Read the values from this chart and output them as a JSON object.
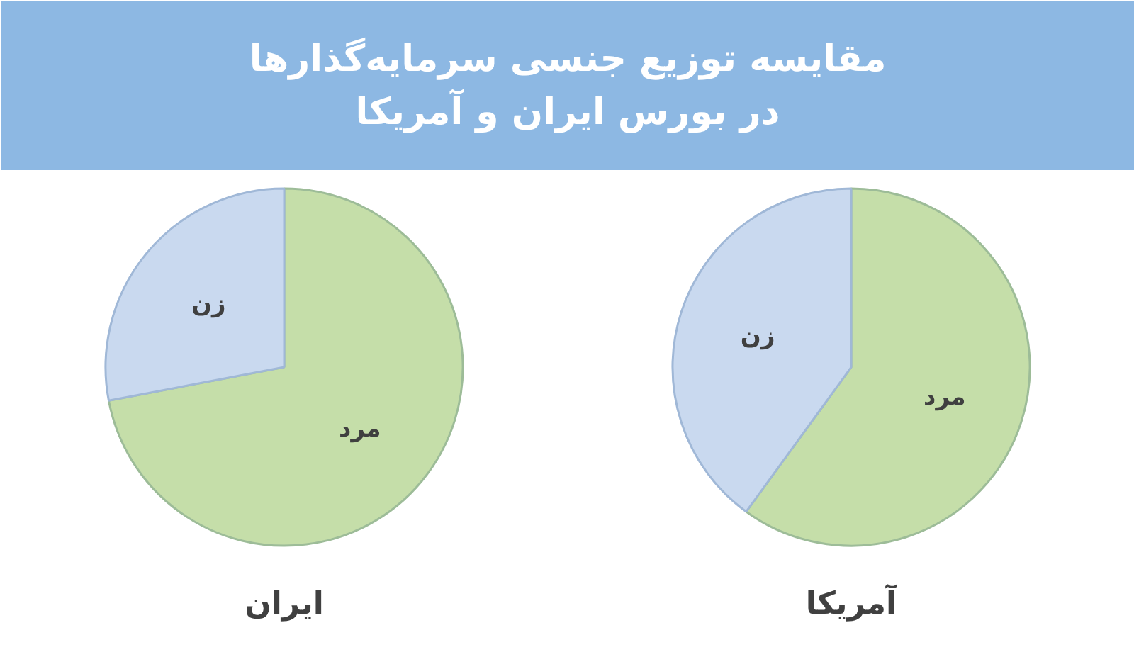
{
  "chart_data": [
    {
      "type": "other",
      "title": "مقایسه توزیع جنسی سرمایه‌گذارها\nدر بورس ایران و آمریکا"
    },
    {
      "type": "pie",
      "title": "ایران",
      "categories": [
        "مرد",
        "زن"
      ],
      "values": [
        72,
        28
      ],
      "colors": [
        "#c5dea9",
        "#c9d9ef"
      ]
    },
    {
      "type": "pie",
      "title": "آمریکا",
      "categories": [
        "مرد",
        "زن"
      ],
      "values": [
        60,
        40
      ],
      "colors": [
        "#c5dea9",
        "#c9d9ef"
      ]
    }
  ]
}
